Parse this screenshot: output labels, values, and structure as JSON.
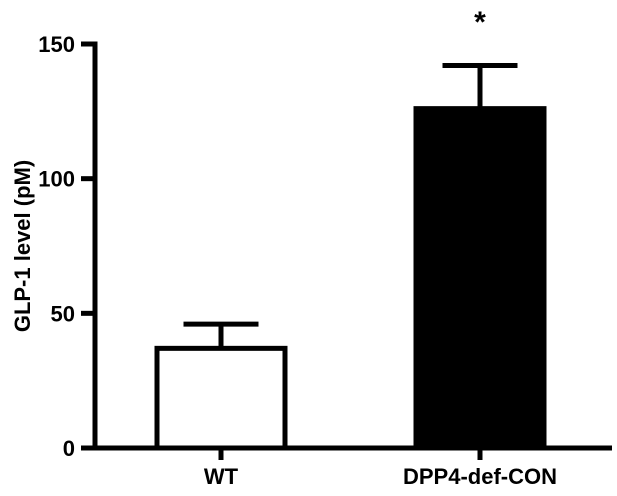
{
  "chart_data": {
    "type": "bar",
    "categories": [
      "WT",
      "DPP4-def-CON"
    ],
    "values": [
      37,
      126
    ],
    "error_upper": [
      46,
      142
    ],
    "ylabel": "GLP-1 level (pM)",
    "xlabel": "",
    "ylim": [
      0,
      150
    ],
    "yticks": [
      0,
      50,
      100,
      150
    ],
    "annotations": [
      {
        "category": "DPP4-def-CON",
        "text": "*"
      }
    ],
    "bar_fill": [
      "#ffffff",
      "#000000"
    ],
    "grid": false,
    "legend": "none"
  }
}
